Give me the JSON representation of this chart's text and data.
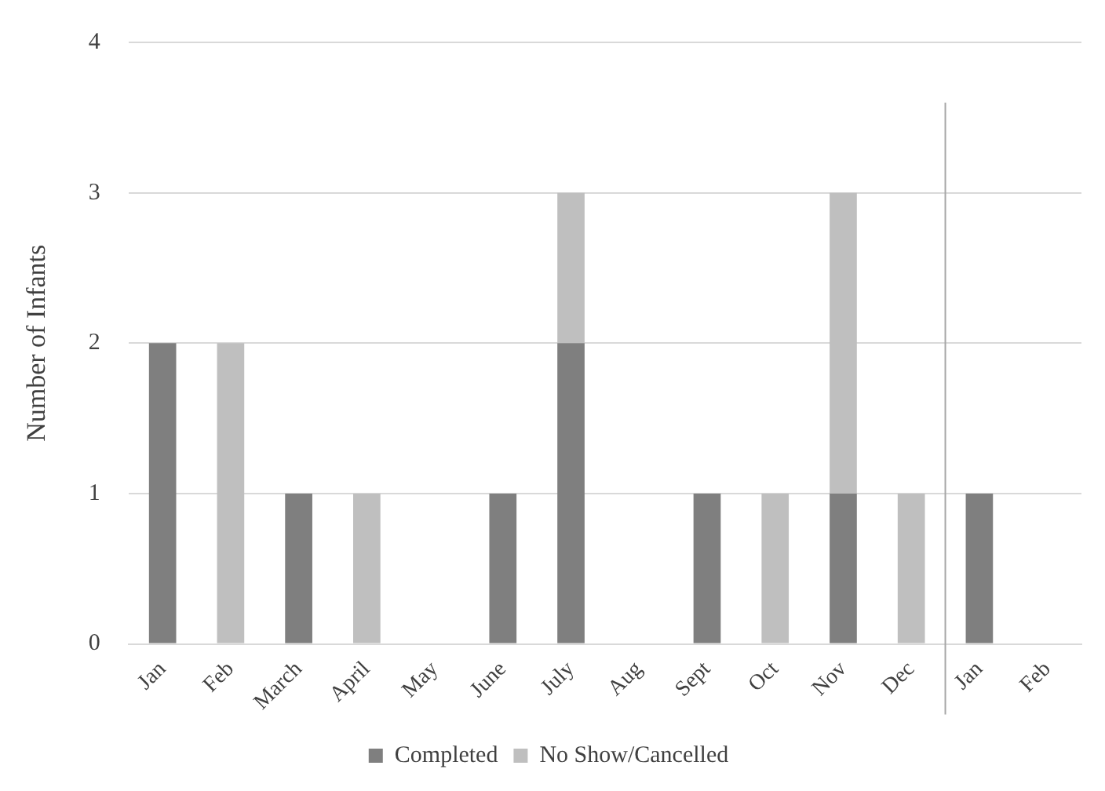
{
  "chart_data": {
    "type": "bar",
    "stacked": true,
    "ylabel": "Number of Infants",
    "categories": [
      "Jan",
      "Feb",
      "March",
      "April",
      "May",
      "June",
      "July",
      "Aug",
      "Sept",
      "Oct",
      "Nov",
      "Dec",
      "Jan",
      "Feb"
    ],
    "series": [
      {
        "name": "Completed",
        "color": "#7f7f7f",
        "values": [
          2,
          0,
          1,
          0,
          0,
          1,
          2,
          0,
          1,
          0,
          1,
          0,
          1,
          0
        ]
      },
      {
        "name": "No Show/Cancelled",
        "color": "#bfbfbf",
        "values": [
          0,
          2,
          0,
          1,
          0,
          0,
          1,
          0,
          0,
          1,
          2,
          1,
          0,
          0
        ]
      }
    ],
    "ylim": [
      0,
      4
    ],
    "yticks": [
      0,
      1,
      2,
      3,
      4
    ],
    "grid": "y",
    "legend": "bottom",
    "ref_lines": [
      {
        "axis": "x",
        "value": "Dec",
        "color": "#a6a6a6"
      }
    ]
  }
}
